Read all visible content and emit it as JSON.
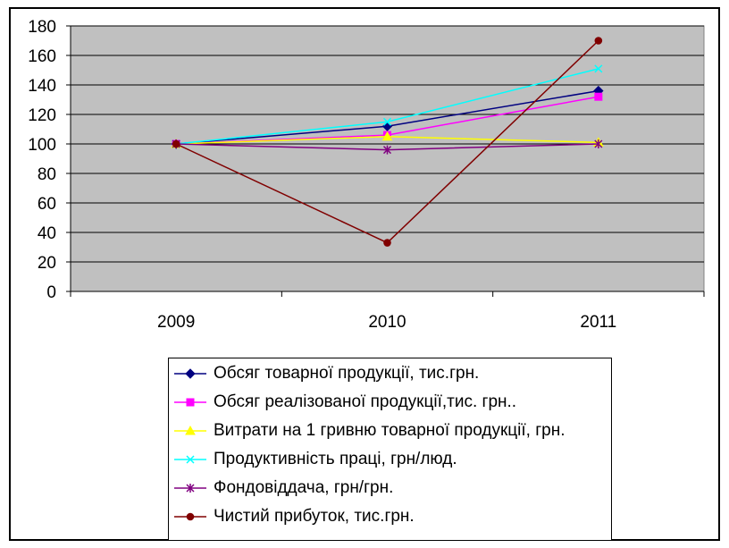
{
  "chart_data": {
    "type": "line",
    "title": "",
    "xlabel": "",
    "ylabel": "",
    "categories": [
      "2009",
      "2010",
      "2011"
    ],
    "ylim": [
      0,
      180
    ],
    "yticks": [
      "0",
      "20",
      "40",
      "60",
      "80",
      "100",
      "120",
      "140",
      "160",
      "180"
    ],
    "grid": true,
    "plot_background": "#c0c0c0",
    "legend_position": "bottom",
    "series": [
      {
        "name": "Обсяг товарної продукції, тис.грн.",
        "values": [
          100,
          112,
          136
        ],
        "color": "#000080",
        "marker": "diamond"
      },
      {
        "name": "Обсяг реалізованої продукції,тис. грн..",
        "values": [
          100,
          106,
          132
        ],
        "color": "#ff00ff",
        "marker": "square"
      },
      {
        "name": "Витрати на 1 гривню товарної продукції, грн.",
        "values": [
          100,
          105,
          101
        ],
        "color": "#ffff00",
        "marker": "triangle"
      },
      {
        "name": "Продуктивність праці, грн/люд.",
        "values": [
          100,
          115,
          151
        ],
        "color": "#00ffff",
        "marker": "x"
      },
      {
        "name": "Фондовіддача, грн/грн.",
        "values": [
          100,
          96,
          100
        ],
        "color": "#800080",
        "marker": "asterisk"
      },
      {
        "name": "Чистий прибуток, тис.грн.",
        "values": [
          100,
          33,
          170
        ],
        "color": "#800000",
        "marker": "circle"
      }
    ]
  }
}
